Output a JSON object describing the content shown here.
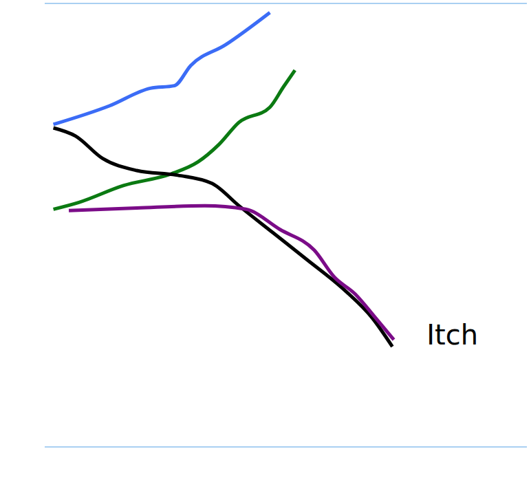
{
  "chart_data": {
    "type": "line",
    "tick_labels": false,
    "grid": true,
    "xlim": [
      0,
      10
    ],
    "ylim": [
      0,
      10.3
    ],
    "yticks": [
      0,
      1,
      2,
      3,
      4,
      5,
      6,
      7,
      8,
      9,
      10
    ],
    "series": [
      {
        "color": "#3b6cf6",
        "x": [
          0.18,
          1.34,
          2.19,
          2.69,
          3.03,
          3.75,
          4.67
        ],
        "values": [
          7.49,
          7.92,
          8.33,
          8.39,
          8.86,
          9.34,
          10.09
        ]
      },
      {
        "color": "#0b7a12",
        "x": [
          0.18,
          0.71,
          1.63,
          2.62,
          3.18,
          3.61,
          4.03,
          4.67,
          4.95,
          5.19
        ],
        "values": [
          5.52,
          5.68,
          6.07,
          6.34,
          6.62,
          7.02,
          7.54,
          7.89,
          8.36,
          8.75
        ]
      },
      {
        "color": "#000000",
        "x": [
          0.18,
          0.64,
          1.2,
          1.91,
          2.76,
          3.47,
          4.03,
          4.74,
          5.45,
          6.15,
          6.79,
          7.21
        ],
        "values": [
          7.41,
          7.22,
          6.7,
          6.42,
          6.31,
          6.12,
          5.6,
          4.97,
          4.34,
          3.71,
          3.0,
          2.33
        ]
      },
      {
        "color": "#7b0c88",
        "x": [
          0.5,
          1.91,
          3.32,
          4.17,
          4.88,
          5.59,
          6.01,
          6.44,
          6.86,
          7.24
        ],
        "values": [
          5.49,
          5.55,
          5.6,
          5.52,
          5.05,
          4.57,
          3.94,
          3.55,
          3.0,
          2.49
        ]
      }
    ],
    "annotations": [
      {
        "text": "Itch",
        "x": 7.85,
        "y": 2.6
      }
    ]
  }
}
